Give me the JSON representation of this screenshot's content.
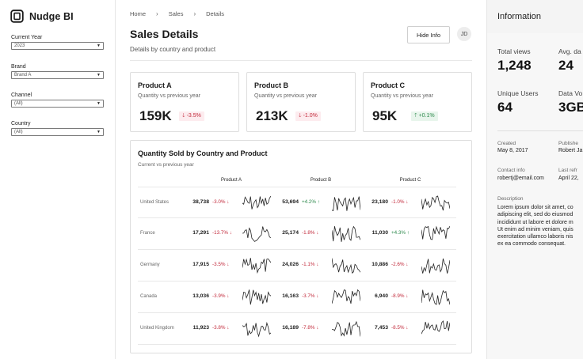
{
  "app": {
    "name": "Nudge BI"
  },
  "filters": [
    {
      "label": "Current Year",
      "value": "2023"
    },
    {
      "label": "Brand",
      "value": "Brand A"
    },
    {
      "label": "Channel",
      "value": "(All)"
    },
    {
      "label": "Country",
      "value": "(All)"
    }
  ],
  "breadcrumb": [
    "Home",
    "Sales",
    "Details"
  ],
  "page": {
    "title": "Sales Details",
    "subtitle": "Details by country and product",
    "hide_info_label": "Hide Info",
    "avatar_initials": "JD"
  },
  "kpis": [
    {
      "title": "Product A",
      "subtitle": "Quantity vs previous year",
      "value": "159K",
      "delta": "-3.5%",
      "direction": "down"
    },
    {
      "title": "Product B",
      "subtitle": "Quantity vs previous year",
      "value": "213K",
      "delta": "-1.0%",
      "direction": "down"
    },
    {
      "title": "Product C",
      "subtitle": "Quantity vs previous year",
      "value": "95K",
      "delta": "+0.1%",
      "direction": "up"
    }
  ],
  "table": {
    "title": "Quantity Sold by Country and Product",
    "subtitle": "Current vs previous year",
    "columns": [
      "Product A",
      "Product B",
      "Product C"
    ],
    "rows": [
      {
        "country": "United States",
        "cells": [
          {
            "value": "38,738",
            "delta": "-3.0%",
            "direction": "down"
          },
          {
            "value": "53,694",
            "delta": "+4.2%",
            "direction": "up"
          },
          {
            "value": "23,180",
            "delta": "-1.0%",
            "direction": "down"
          }
        ]
      },
      {
        "country": "France",
        "cells": [
          {
            "value": "17,291",
            "delta": "-13.7%",
            "direction": "down"
          },
          {
            "value": "25,174",
            "delta": "-1.8%",
            "direction": "down"
          },
          {
            "value": "11,030",
            "delta": "+4.3%",
            "direction": "up"
          }
        ]
      },
      {
        "country": "Germany",
        "cells": [
          {
            "value": "17,915",
            "delta": "-3.5%",
            "direction": "down"
          },
          {
            "value": "24,026",
            "delta": "-1.1%",
            "direction": "down"
          },
          {
            "value": "10,886",
            "delta": "-2.6%",
            "direction": "down"
          }
        ]
      },
      {
        "country": "Canada",
        "cells": [
          {
            "value": "13,036",
            "delta": "-3.9%",
            "direction": "down"
          },
          {
            "value": "16,163",
            "delta": "-3.7%",
            "direction": "down"
          },
          {
            "value": "6,940",
            "delta": "-8.9%",
            "direction": "down"
          }
        ]
      },
      {
        "country": "United Kingdom",
        "cells": [
          {
            "value": "11,923",
            "delta": "-3.8%",
            "direction": "down"
          },
          {
            "value": "16,189",
            "delta": "-7.8%",
            "direction": "down"
          },
          {
            "value": "7,453",
            "delta": "-8.5%",
            "direction": "down"
          }
        ]
      }
    ]
  },
  "info": {
    "title": "Information",
    "stats": [
      {
        "label": "Total views",
        "value": "1,248"
      },
      {
        "label": "Avg. da",
        "value": "24"
      },
      {
        "label": "Unique Users",
        "value": "64"
      },
      {
        "label": "Data Vo",
        "value": "3GB"
      }
    ],
    "meta": [
      {
        "label": "Created",
        "value": "May 8, 2017"
      },
      {
        "label": "Publishe",
        "value": "Robert Ja"
      },
      {
        "label": "Contact info",
        "value": "robertj@email.com"
      },
      {
        "label": "Last refr",
        "value": "April 22,"
      }
    ],
    "description_label": "Description",
    "description_lines": [
      "Lorem ipsum dolor sit amet, co",
      "adipiscing elit, sed do eiusmod",
      "incididunt ut labore et dolore m",
      "Ut enim ad minim veniam, quis",
      "exercitation ullamco laboris nis",
      "ex ea commodo consequat."
    ]
  },
  "colors": {
    "negative": "#c22a3b",
    "positive": "#2e8a4d",
    "accent": "#1a1a1a"
  },
  "icons": {
    "logo": "nudge-logo-icon",
    "caret": "caret-down-icon",
    "breadcrumb_separator": "chevron-right-icon",
    "down_arrow": "arrow-down-icon",
    "up_arrow": "arrow-up-icon"
  }
}
